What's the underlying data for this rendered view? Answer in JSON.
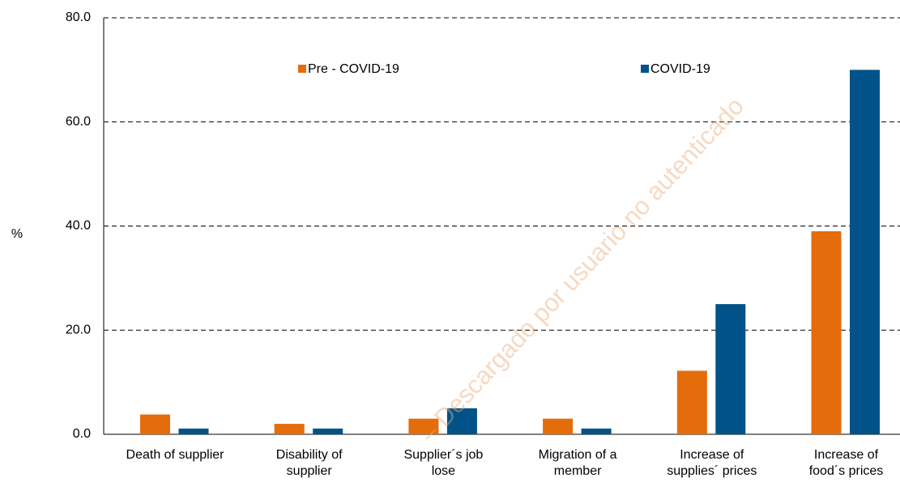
{
  "chart_data": {
    "type": "bar",
    "y_label": "%",
    "categories": [
      [
        "Death of supplier"
      ],
      [
        "Disability of",
        "supplier"
      ],
      [
        "Supplier´s job",
        "lose"
      ],
      [
        "Migration of a",
        "member"
      ],
      [
        "Increase of",
        "supplies´ prices"
      ],
      [
        "Increase of",
        "food´s prices"
      ]
    ],
    "series": [
      {
        "name": "Pre - COVID-19",
        "color": "#e46c0a",
        "values": [
          3.8,
          2.0,
          3.0,
          3.0,
          12.2,
          39.0
        ]
      },
      {
        "name": "COVID-19",
        "color": "#005288",
        "values": [
          1.1,
          1.1,
          5.0,
          1.1,
          25.0,
          70.0
        ]
      }
    ],
    "ylim": [
      0,
      80
    ],
    "yticks": [
      {
        "value": 0,
        "label": "0.0"
      },
      {
        "value": 20,
        "label": "20.0"
      },
      {
        "value": 40,
        "label": "40.0"
      },
      {
        "value": 60,
        "label": "60.0"
      },
      {
        "value": 80,
        "label": "80.0"
      }
    ],
    "grid": true,
    "watermark": "– Descargado por usuario no autenticado"
  }
}
